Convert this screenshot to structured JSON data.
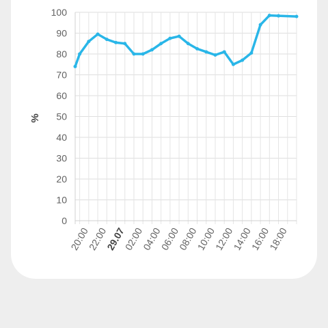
{
  "chart_data": {
    "type": "line",
    "ylabel": "%",
    "ylim": [
      0,
      100
    ],
    "yticks": [
      "0",
      "10",
      "20",
      "30",
      "40",
      "50",
      "60",
      "70",
      "80",
      "90",
      "100"
    ],
    "xticks": [
      {
        "label": "20:00",
        "x": 1,
        "bold": false
      },
      {
        "label": "22:00",
        "x": 3,
        "bold": false
      },
      {
        "label": "29.07",
        "x": 5,
        "bold": true
      },
      {
        "label": "02:00",
        "x": 7,
        "bold": false
      },
      {
        "label": "04:00",
        "x": 9,
        "bold": false
      },
      {
        "label": "06:00",
        "x": 11,
        "bold": false
      },
      {
        "label": "08:00",
        "x": 13,
        "bold": false
      },
      {
        "label": "10:00",
        "x": 15,
        "bold": false
      },
      {
        "label": "12:00",
        "x": 17,
        "bold": false
      },
      {
        "label": "14:00",
        "x": 19,
        "bold": false
      },
      {
        "label": "16:00",
        "x": 21,
        "bold": false
      },
      {
        "label": "18:00",
        "x": 23,
        "bold": false
      }
    ],
    "xlim": [
      0,
      24.5
    ],
    "color": "#29b6e8",
    "grid": true,
    "series": [
      {
        "x": [
          0,
          0.5,
          1.5,
          2.5,
          3.5,
          4.5,
          5.5,
          6.5,
          7.5,
          8.5,
          9.5,
          10.5,
          11.5,
          12.5,
          13.5,
          14.5,
          15.5,
          16.5,
          17.5,
          18.5,
          19.5,
          20.5,
          21.5,
          22.5,
          24.5
        ],
        "y": [
          74,
          80,
          86,
          89.5,
          87,
          85.5,
          85,
          80,
          80,
          82,
          85,
          87.5,
          88.5,
          85,
          82.5,
          81,
          79.5,
          81,
          75,
          77,
          80.5,
          94,
          98.5,
          98.3,
          98
        ]
      }
    ]
  }
}
